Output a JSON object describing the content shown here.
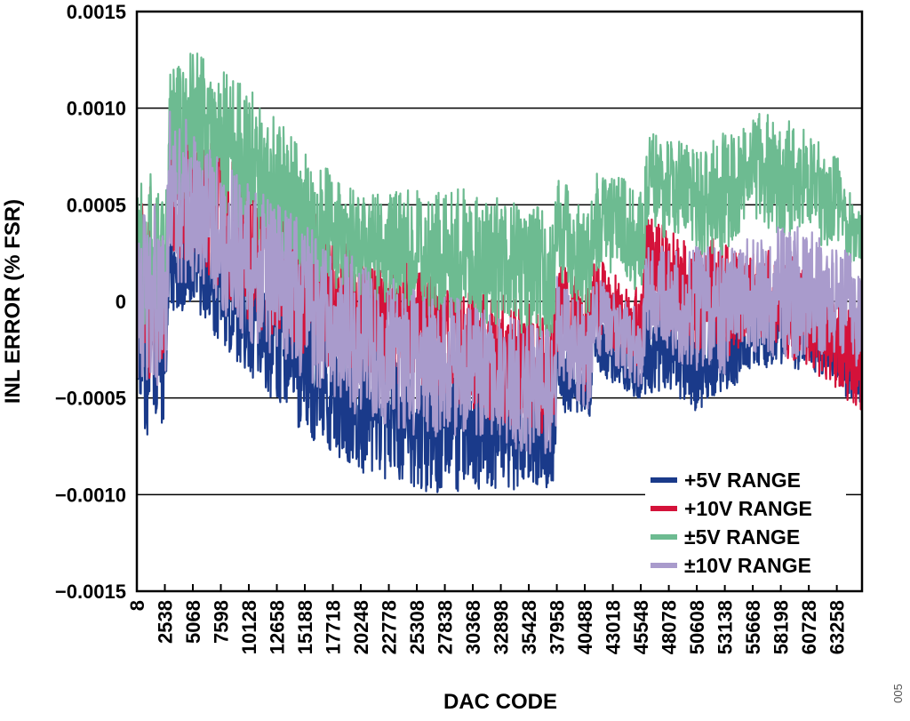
{
  "chart_data": {
    "type": "line",
    "title": "",
    "xlabel": "DAC CODE",
    "ylabel": "INL ERROR (% FSR)",
    "figure_id": "005",
    "xlim": [
      8,
      65535
    ],
    "ylim": [
      -0.0015,
      0.0015
    ],
    "y_ticks": [
      0.0015,
      0.001,
      0.0005,
      0,
      -0.0005,
      -0.001,
      -0.0015
    ],
    "y_tick_labels": [
      "0.0015",
      "0.0010",
      "0.0005",
      "0",
      "−0.0005",
      "−0.0010",
      "−0.0015"
    ],
    "x_tick_labels": [
      "8",
      "2538",
      "5068",
      "7598",
      "10128",
      "12658",
      "15188",
      "17718",
      "20248",
      "22778",
      "25308",
      "27838",
      "30368",
      "32898",
      "35428",
      "37958",
      "40488",
      "43018",
      "45548",
      "48078",
      "50608",
      "53138",
      "55668",
      "58198",
      "60728",
      "63258"
    ],
    "x_ticks": [
      8,
      2538,
      5068,
      7598,
      10128,
      12658,
      15188,
      17718,
      20248,
      22778,
      25308,
      27838,
      30368,
      32898,
      35428,
      37958,
      40488,
      43018,
      45548,
      48078,
      50608,
      53138,
      55668,
      58198,
      60728,
      63258
    ],
    "grid": "horizontal",
    "legend_position": "bottom-right",
    "series": [
      {
        "name": "+5V RANGE",
        "color": "#1a3a8a",
        "band": {
          "x": [
            8,
            1500,
            2600,
            3000,
            5068,
            10128,
            15188,
            20248,
            25308,
            30368,
            35428,
            37800,
            38000,
            40488,
            41000,
            41300,
            43018,
            45700,
            46000,
            48078,
            50608,
            53138,
            54200,
            55668,
            58198,
            60728,
            63258,
            65535
          ],
          "high": [
            0.0001,
            0.0002,
            0.0,
            0.0003,
            0.0003,
            0.00015,
            -0.0001,
            -0.0003,
            -0.0004,
            -0.0004,
            -0.0005,
            -0.0005,
            -0.0002,
            -0.0004,
            -0.0004,
            -0.0001,
            -0.0002,
            -0.0003,
            5e-05,
            0.0,
            -0.0001,
            -0.0001,
            -0.0001,
            -0.0001,
            0.0,
            0.0,
            -0.0001,
            -0.0001
          ],
          "low": [
            -0.0005,
            -0.0006,
            -0.0005,
            0.0,
            0.0,
            -0.0003,
            -0.0006,
            -0.0008,
            -0.0009,
            -0.0009,
            -0.0009,
            -0.0009,
            -0.0005,
            -0.0006,
            -0.0006,
            -0.0003,
            -0.0004,
            -0.0005,
            -0.0004,
            -0.0004,
            -0.0005,
            -0.0004,
            -0.0004,
            -0.0003,
            -0.0003,
            -0.0003,
            -0.0004,
            -0.0005
          ]
        }
      },
      {
        "name": "+10V RANGE",
        "color": "#d4123a",
        "band": {
          "x": [
            8,
            1500,
            2600,
            3000,
            5068,
            10128,
            15188,
            20248,
            25308,
            30368,
            35428,
            37800,
            38000,
            40488,
            41000,
            41300,
            43018,
            45700,
            46000,
            48078,
            50608,
            53138,
            54200,
            55668,
            58198,
            60728,
            63258,
            65535
          ],
          "high": [
            0.0004,
            0.0005,
            0.0002,
            0.0008,
            0.0008,
            0.0006,
            0.0004,
            0.0002,
            0.0001,
            0.0,
            -0.0001,
            -0.0001,
            0.0002,
            0.0,
            0.0,
            0.0002,
            0.0001,
            0.0,
            0.0004,
            0.0003,
            0.0002,
            0.0003,
            0.0002,
            0.0002,
            0.0002,
            0.0001,
            0.0,
            -0.0001
          ],
          "low": [
            -0.0002,
            -0.0003,
            -0.0002,
            0.0003,
            0.0003,
            0.0,
            -0.0002,
            -0.0003,
            -0.0004,
            -0.0005,
            -0.0006,
            -0.0006,
            -0.0002,
            -0.0004,
            -0.0004,
            -0.0001,
            -0.0002,
            -0.0003,
            0.0,
            -0.0001,
            -0.0002,
            -0.0002,
            -0.0002,
            -0.0001,
            -0.0002,
            -0.0003,
            -0.0004,
            -0.0005
          ]
        }
      },
      {
        "name": "±5V RANGE",
        "color": "#6dbb91",
        "band": {
          "x": [
            8,
            1500,
            2600,
            3000,
            5068,
            10128,
            15188,
            20248,
            25308,
            30368,
            35428,
            37800,
            38000,
            40488,
            41000,
            41300,
            43018,
            45700,
            46000,
            48078,
            50608,
            53138,
            54200,
            55668,
            58198,
            60728,
            63258,
            65535
          ],
          "high": [
            0.0005,
            0.0006,
            0.0004,
            0.0011,
            0.0012,
            0.001,
            0.0007,
            0.0005,
            0.0005,
            0.0005,
            0.0004,
            0.0004,
            0.0006,
            0.0004,
            0.0004,
            0.0006,
            0.0006,
            0.0005,
            0.0008,
            0.0008,
            0.0007,
            0.0008,
            0.0008,
            0.0009,
            0.0009,
            0.0008,
            0.0007,
            0.0004
          ],
          "low": [
            0.0,
            -0.0001,
            0.0,
            0.0006,
            0.0006,
            0.0004,
            0.0002,
            0.0001,
            0.0,
            0.0,
            -0.0001,
            -0.0001,
            0.0002,
            0.0,
            0.0,
            0.0002,
            0.0002,
            0.0001,
            0.0004,
            0.0004,
            0.0003,
            0.0003,
            0.0004,
            0.0005,
            0.0004,
            0.0004,
            0.0003,
            0.0002
          ]
        }
      },
      {
        "name": "±10V RANGE",
        "color": "#a99bcc",
        "band": {
          "x": [
            8,
            1500,
            2600,
            3000,
            5068,
            10128,
            15188,
            20248,
            25308,
            30368,
            35428,
            37800,
            38000,
            40488,
            41000,
            41300,
            43018,
            45700,
            46000,
            48078,
            50608,
            53138,
            54200,
            55668,
            58198,
            60728,
            63258,
            65535
          ],
          "high": [
            0.0003,
            0.0004,
            0.0002,
            0.0009,
            0.0008,
            0.0005,
            0.0003,
            0.0001,
            0.0,
            -0.0001,
            -0.0002,
            -0.0002,
            0.0001,
            -0.0001,
            -0.0001,
            0.0001,
            0.0,
            -0.0001,
            0.0003,
            0.0002,
            0.0002,
            0.0002,
            0.0002,
            0.0003,
            0.0003,
            0.0003,
            0.0002,
            0.0002
          ],
          "low": [
            -0.0003,
            -0.0004,
            -0.0003,
            0.0002,
            0.0002,
            -0.0001,
            -0.0003,
            -0.0005,
            -0.0006,
            -0.0006,
            -0.0007,
            -0.0007,
            -0.0003,
            -0.0005,
            -0.0005,
            -0.0002,
            -0.0003,
            -0.0004,
            -0.0001,
            -0.0002,
            -0.0003,
            -0.0003,
            -0.0002,
            -0.0002,
            -0.0002,
            -0.0002,
            -0.0002,
            -0.0003
          ]
        }
      }
    ]
  }
}
